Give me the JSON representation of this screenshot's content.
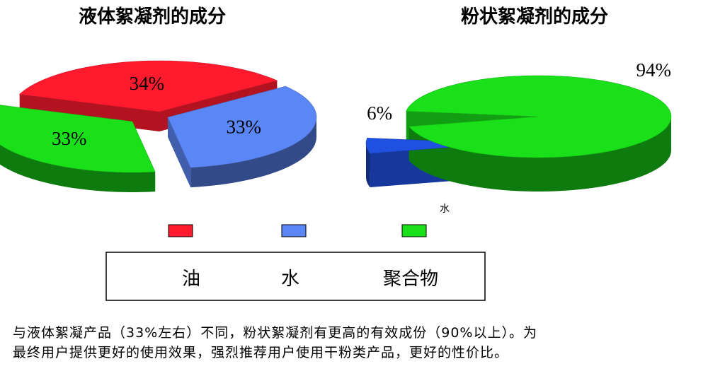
{
  "chart_data": [
    {
      "type": "pie",
      "title": "液体絮凝剂的成分",
      "categories": [
        "油",
        "水",
        "聚合物"
      ],
      "values": [
        34,
        33,
        33
      ],
      "value_labels": [
        "34%",
        "33%",
        "33%"
      ],
      "colors": [
        "#ff1a2e",
        "#5b86f5",
        "#1ae01a"
      ]
    },
    {
      "type": "pie",
      "title": "粉状絮凝剂的成分",
      "categories": [
        "水",
        null
      ],
      "values": [
        6,
        94
      ],
      "value_labels": [
        "6%",
        "94%"
      ],
      "colors": [
        "#2050e0",
        "#1ae01a"
      ]
    }
  ],
  "caption": [
    "与液体絮凝产品（33%左右）不同，粉状絮凝剂有更高的有效成份（90%以上）。为",
    "最终用户提供更好的使用效果，强烈推荐用户使用干粉类产品，更好的性价比。"
  ]
}
